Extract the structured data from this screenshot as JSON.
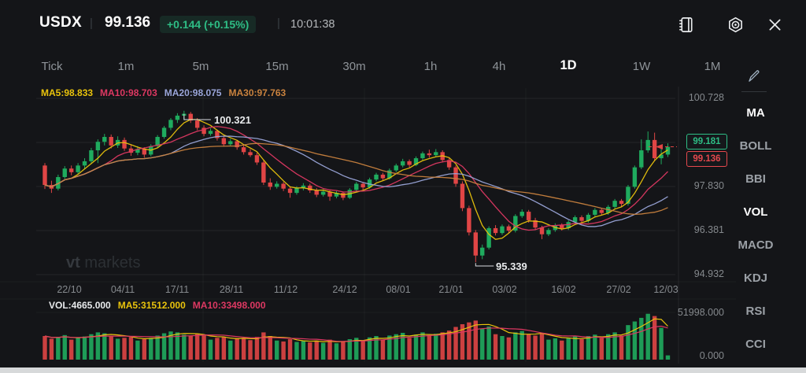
{
  "header": {
    "symbol": "USDX",
    "divider": "|",
    "price": "99.136",
    "change_badge": "+0.144 (+0.15%)",
    "time": "10:01:38"
  },
  "timeframe_tabs": {
    "items": [
      {
        "label": "Tick",
        "active": false
      },
      {
        "label": "1m",
        "active": false
      },
      {
        "label": "5m",
        "active": false
      },
      {
        "label": "15m",
        "active": false
      },
      {
        "label": "30m",
        "active": false
      },
      {
        "label": "1h",
        "active": false
      },
      {
        "label": "4h",
        "active": false
      },
      {
        "label": "1D",
        "active": true
      },
      {
        "label": "1W",
        "active": false
      },
      {
        "label": "1M",
        "active": false
      }
    ]
  },
  "main_legend": {
    "ma5": "MA5:98.833",
    "ma10": "MA10:98.703",
    "ma20": "MA20:98.075",
    "ma30": "MA30:97.763"
  },
  "volume_legend": {
    "vol": "VOL:4665.000",
    "ma5": "MA5:31512.000",
    "ma10": "MA10:33498.000"
  },
  "annotations": {
    "high_label": "100.321",
    "low_label": "95.339"
  },
  "price_tags": {
    "ask": "99.181",
    "last": "99.136"
  },
  "y_axis": {
    "labels": [
      "100.728",
      "97.830",
      "96.381",
      "94.932"
    ]
  },
  "volume_axis": {
    "labels": [
      "51998.000",
      "0.000"
    ]
  },
  "x_axis": {
    "labels": [
      "22/10",
      "04/11",
      "17/11",
      "28/11",
      "11/12",
      "24/12",
      "08/01",
      "21/01",
      "03/02",
      "16/02",
      "27/02",
      "12/03"
    ]
  },
  "sidebar": {
    "items": [
      {
        "label": "MA",
        "active": true
      },
      {
        "label": "BOLL",
        "active": false
      },
      {
        "label": "BBI",
        "active": false
      },
      {
        "label": "VOL",
        "active": true
      },
      {
        "label": "MACD",
        "active": false
      },
      {
        "label": "KDJ",
        "active": false
      },
      {
        "label": "RSI",
        "active": false
      },
      {
        "label": "CCI",
        "active": false
      }
    ]
  },
  "watermark": {
    "bold": "vt",
    "rest": " markets"
  },
  "colors": {
    "accent_up": "#2ebd85",
    "accent_down": "#e5484d"
  },
  "chart_data": {
    "type": "candlestick",
    "title": "USDX 1D",
    "ylim": [
      94.932,
      100.728
    ],
    "y_ticks": [
      100.728,
      99.279,
      97.83,
      96.381,
      94.932
    ],
    "vol_max": 51998,
    "current_price": 99.136,
    "high_annotation": {
      "index": 21,
      "value": 100.321
    },
    "low_annotation": {
      "index": 65,
      "value": 95.339
    },
    "ma_periods": [
      5,
      10,
      20,
      30
    ],
    "vol_ma_periods": [
      5,
      10
    ],
    "style": {
      "up": "#1fab5e",
      "down": "#e04545",
      "ma5": "#e9c30c",
      "ma10": "#dd3862",
      "ma20": "#9aa5d9",
      "ma30": "#c9823e",
      "grid": "rgba(255,255,255,0.07)",
      "grid_v": "rgba(255,255,255,0.04)",
      "annotation": "#d9dcdf"
    },
    "candles": [
      [
        98.52,
        98.6,
        97.75,
        97.88,
        26000
      ],
      [
        97.88,
        98.02,
        97.62,
        97.76,
        23000
      ],
      [
        97.76,
        98.22,
        97.7,
        98.14,
        24500
      ],
      [
        98.14,
        98.5,
        98.08,
        98.42,
        27000
      ],
      [
        98.42,
        98.52,
        98.2,
        98.3,
        22000
      ],
      [
        98.3,
        98.6,
        98.24,
        98.52,
        24000
      ],
      [
        98.52,
        98.76,
        98.4,
        98.66,
        25500
      ],
      [
        98.66,
        99.1,
        98.58,
        99.02,
        28000
      ],
      [
        99.02,
        99.38,
        98.6,
        99.3,
        30000
      ],
      [
        99.3,
        99.56,
        99.18,
        99.46,
        29000
      ],
      [
        99.46,
        99.54,
        99.08,
        99.18,
        26000
      ],
      [
        99.18,
        99.48,
        99.1,
        99.36,
        23000
      ],
      [
        99.36,
        99.44,
        99.0,
        99.08,
        24000
      ],
      [
        99.08,
        99.2,
        98.84,
        98.94,
        25000
      ],
      [
        98.94,
        99.16,
        98.86,
        99.06,
        21000
      ],
      [
        99.06,
        99.12,
        98.78,
        98.88,
        22500
      ],
      [
        98.88,
        99.22,
        98.82,
        99.16,
        24000
      ],
      [
        99.16,
        99.52,
        99.1,
        99.46,
        26500
      ],
      [
        99.46,
        99.82,
        99.4,
        99.76,
        29000
      ],
      [
        99.76,
        100.08,
        99.68,
        100.02,
        31000
      ],
      [
        100.02,
        100.24,
        99.92,
        100.16,
        30000
      ],
      [
        100.16,
        100.32,
        100.02,
        100.22,
        27500
      ],
      [
        100.22,
        100.28,
        99.92,
        100.0,
        26000
      ],
      [
        100.0,
        100.08,
        99.68,
        99.76,
        28000
      ],
      [
        99.76,
        99.84,
        99.48,
        99.56,
        26500
      ],
      [
        99.56,
        99.74,
        99.5,
        99.66,
        22000
      ],
      [
        99.66,
        99.7,
        99.34,
        99.42,
        24000
      ],
      [
        99.42,
        99.5,
        99.14,
        99.22,
        25000
      ],
      [
        99.22,
        99.4,
        99.16,
        99.32,
        21000
      ],
      [
        99.32,
        99.36,
        99.04,
        99.12,
        23500
      ],
      [
        99.12,
        99.2,
        98.88,
        98.96,
        24000
      ],
      [
        98.96,
        99.06,
        98.8,
        98.86,
        21500
      ],
      [
        98.86,
        98.94,
        98.54,
        98.62,
        25000
      ],
      [
        98.62,
        98.68,
        97.88,
        97.96,
        30000
      ],
      [
        97.96,
        98.1,
        97.72,
        97.82,
        26000
      ],
      [
        97.82,
        98.0,
        97.76,
        97.92,
        21000
      ],
      [
        97.92,
        97.98,
        97.68,
        97.76,
        20000
      ],
      [
        97.76,
        97.84,
        97.46,
        97.62,
        22500
      ],
      [
        97.62,
        97.84,
        97.56,
        97.78,
        19500
      ],
      [
        97.78,
        97.94,
        97.7,
        97.86,
        20500
      ],
      [
        97.86,
        97.92,
        97.62,
        97.7,
        19000
      ],
      [
        97.7,
        97.78,
        97.48,
        97.56,
        21000
      ],
      [
        97.56,
        97.74,
        97.5,
        97.66,
        18500
      ],
      [
        97.66,
        97.72,
        97.36,
        97.5,
        22000
      ],
      [
        97.5,
        97.68,
        97.44,
        97.62,
        18000
      ],
      [
        97.62,
        97.66,
        97.38,
        97.46,
        20000
      ],
      [
        97.46,
        97.78,
        97.42,
        97.72,
        22500
      ],
      [
        97.72,
        97.98,
        97.66,
        97.92,
        24000
      ],
      [
        97.92,
        97.98,
        97.72,
        97.8,
        20500
      ],
      [
        97.8,
        98.12,
        97.76,
        98.06,
        24500
      ],
      [
        98.06,
        98.28,
        98.0,
        98.22,
        26000
      ],
      [
        98.22,
        98.28,
        98.02,
        98.1,
        22000
      ],
      [
        98.1,
        98.42,
        98.06,
        98.36,
        26500
      ],
      [
        98.36,
        98.58,
        98.3,
        98.52,
        28000
      ],
      [
        98.52,
        98.74,
        98.46,
        98.66,
        29500
      ],
      [
        98.66,
        98.72,
        98.46,
        98.54,
        24000
      ],
      [
        98.54,
        98.82,
        98.5,
        98.76,
        27500
      ],
      [
        98.76,
        98.98,
        98.7,
        98.92,
        30000
      ],
      [
        98.92,
        99.04,
        98.78,
        98.86,
        27000
      ],
      [
        98.86,
        99.06,
        98.8,
        98.96,
        28500
      ],
      [
        98.96,
        99.02,
        98.62,
        98.7,
        30000
      ],
      [
        98.7,
        98.78,
        98.38,
        98.46,
        32000
      ],
      [
        98.46,
        98.52,
        97.82,
        97.92,
        36000
      ],
      [
        97.92,
        98.0,
        97.02,
        97.12,
        39000
      ],
      [
        97.12,
        97.2,
        96.22,
        96.32,
        41000
      ],
      [
        96.32,
        96.4,
        95.34,
        95.56,
        43000
      ],
      [
        95.56,
        95.92,
        95.44,
        95.82,
        34000
      ],
      [
        95.82,
        96.52,
        95.76,
        96.46,
        36500
      ],
      [
        96.46,
        96.56,
        96.22,
        96.3,
        28000
      ],
      [
        96.3,
        96.58,
        96.24,
        96.52,
        26000
      ],
      [
        96.52,
        96.58,
        96.3,
        96.38,
        24500
      ],
      [
        96.38,
        96.92,
        96.32,
        96.86,
        30000
      ],
      [
        96.86,
        97.08,
        96.8,
        97.0,
        31500
      ],
      [
        97.0,
        97.06,
        96.64,
        96.72,
        28000
      ],
      [
        96.72,
        96.8,
        96.4,
        96.48,
        26500
      ],
      [
        96.48,
        96.54,
        96.1,
        96.26,
        29000
      ],
      [
        96.26,
        96.46,
        96.2,
        96.4,
        22000
      ],
      [
        96.4,
        96.62,
        96.34,
        96.56,
        23500
      ],
      [
        96.56,
        96.62,
        96.38,
        96.46,
        21000
      ],
      [
        96.46,
        96.72,
        96.4,
        96.66,
        24000
      ],
      [
        96.66,
        96.88,
        96.6,
        96.82,
        25500
      ],
      [
        96.82,
        96.88,
        96.62,
        96.7,
        22500
      ],
      [
        96.7,
        96.96,
        96.64,
        96.9,
        26000
      ],
      [
        96.9,
        97.12,
        96.84,
        97.06,
        27500
      ],
      [
        97.06,
        97.12,
        96.88,
        96.96,
        24000
      ],
      [
        96.96,
        97.22,
        96.9,
        97.16,
        28000
      ],
      [
        97.16,
        97.42,
        97.1,
        97.36,
        30000
      ],
      [
        97.36,
        97.42,
        97.16,
        97.26,
        26500
      ],
      [
        97.26,
        97.88,
        97.2,
        97.82,
        38000
      ],
      [
        97.82,
        98.52,
        97.76,
        98.46,
        42000
      ],
      [
        98.46,
        99.38,
        98.4,
        99.02,
        46000
      ],
      [
        99.02,
        99.64,
        98.94,
        99.36,
        50500
      ],
      [
        99.36,
        99.6,
        98.66,
        98.76,
        48000
      ],
      [
        98.76,
        99.1,
        98.56,
        98.88,
        35000
      ],
      [
        98.88,
        99.25,
        98.8,
        99.136,
        4665
      ]
    ]
  }
}
